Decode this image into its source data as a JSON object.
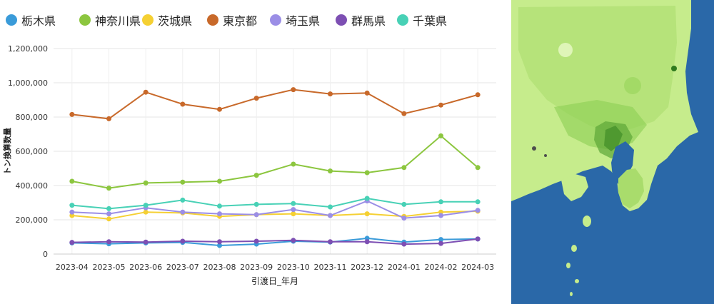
{
  "legend": {
    "items": [
      {
        "label": "栃木県",
        "color": "#3a9bd9"
      },
      {
        "label": "神奈川県",
        "color": "#8cc63f"
      },
      {
        "label": "茨城県",
        "color": "#f5d033"
      },
      {
        "label": "東京都",
        "color": "#c8692a"
      },
      {
        "label": "埼玉県",
        "color": "#9b8ee6"
      },
      {
        "label": "群馬県",
        "color": "#7d4fb3"
      },
      {
        "label": "千葉県",
        "color": "#48d1b6"
      }
    ]
  },
  "chart_data": {
    "type": "line",
    "xlabel": "引渡日_年月",
    "ylabel": "トン換算数量",
    "ylim": [
      0,
      1200000
    ],
    "yticks": [
      "0",
      "200,000",
      "400,000",
      "600,000",
      "800,000",
      "1,000,000",
      "1,200,000"
    ],
    "grid": true,
    "legend_position": "top",
    "categories": [
      "2023-04",
      "2023-05",
      "2023-06",
      "2023-07",
      "2023-08",
      "2023-09",
      "2023-10",
      "2023-11",
      "2023-12",
      "2024-01",
      "2024-02",
      "2024-03"
    ],
    "series": [
      {
        "name": "栃木県",
        "color": "#3a9bd9",
        "values": [
          65000,
          60000,
          65000,
          68000,
          50000,
          58000,
          75000,
          70000,
          92000,
          70000,
          85000,
          88000
        ]
      },
      {
        "name": "神奈川県",
        "color": "#8cc63f",
        "values": [
          425000,
          385000,
          415000,
          420000,
          425000,
          460000,
          525000,
          485000,
          475000,
          505000,
          690000,
          505000
        ]
      },
      {
        "name": "茨城県",
        "color": "#f5d033",
        "values": [
          225000,
          205000,
          245000,
          240000,
          220000,
          230000,
          235000,
          225000,
          235000,
          220000,
          245000,
          250000
        ]
      },
      {
        "name": "東京都",
        "color": "#c8692a",
        "values": [
          815000,
          790000,
          945000,
          875000,
          845000,
          910000,
          960000,
          935000,
          940000,
          820000,
          870000,
          930000
        ]
      },
      {
        "name": "埼玉県",
        "color": "#9b8ee6",
        "values": [
          245000,
          235000,
          270000,
          245000,
          235000,
          230000,
          260000,
          225000,
          310000,
          210000,
          225000,
          255000
        ]
      },
      {
        "name": "群馬県",
        "color": "#7d4fb3",
        "values": [
          68000,
          72000,
          70000,
          75000,
          72000,
          75000,
          80000,
          72000,
          72000,
          58000,
          62000,
          88000
        ]
      },
      {
        "name": "千葉県",
        "color": "#48d1b6",
        "values": [
          285000,
          265000,
          285000,
          315000,
          280000,
          290000,
          295000,
          275000,
          325000,
          290000,
          305000,
          305000
        ]
      }
    ]
  },
  "map": {
    "land_color": "#c6ec8c",
    "water_color": "#2a68a8",
    "accent_dark": "#2f7a1e"
  }
}
